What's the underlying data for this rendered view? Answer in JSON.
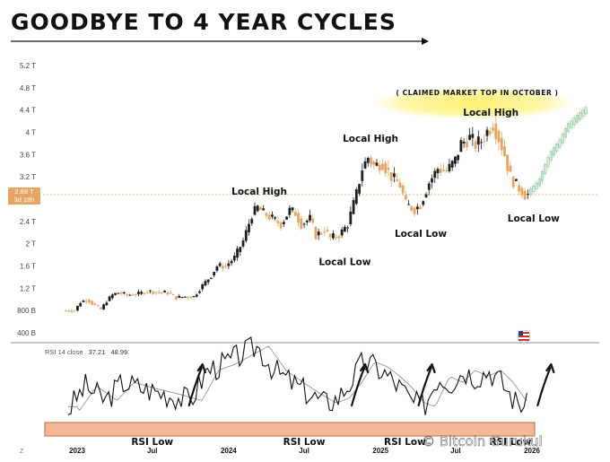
{
  "title": "GOODBYE TO 4 YEAR CYCLES",
  "watermark": "© Bitcoin Gurukul",
  "claim_label": "( CLAIMED MARKET TOP IN OCTOBER )",
  "price_tag": {
    "value": "2.88 T",
    "timer": "3d 18h"
  },
  "rsi_label": {
    "name": "RSI 14 close",
    "v1": "37.21",
    "v2": "48.99"
  },
  "colors": {
    "up": "#1f1f1f",
    "down": "#e8a561",
    "rsi_band": "#f4b896",
    "highlight": "#fff06a",
    "projection": "#8fc79a"
  },
  "chart_data": {
    "type": "candlestick",
    "title": "GOODBYE TO 4 YEAR CYCLES",
    "y_unit": "T",
    "y_ticks": [
      "5.2 T",
      "4.8 T",
      "4.4 T",
      "4 T",
      "3.6 T",
      "3.2 T",
      "2.4 T",
      "2 T",
      "1.6 T",
      "1.2 T",
      "800 B",
      "400 B"
    ],
    "y_tick_values": [
      5.2,
      4.8,
      4.4,
      4.0,
      3.6,
      3.2,
      2.4,
      2.0,
      1.6,
      1.2,
      0.8,
      0.4
    ],
    "x_ticks": [
      "2023",
      "Jul",
      "2024",
      "Jul",
      "2025",
      "Jul",
      "2026"
    ],
    "x_tick_dates": [
      "2023-01-01",
      "2023-07-01",
      "2024-01-01",
      "2024-07-01",
      "2025-01-01",
      "2025-07-01",
      "2026-01-01"
    ],
    "current_price": 2.88,
    "price_path": [
      [
        "2022-12-05",
        0.8
      ],
      [
        "2022-12-19",
        0.8
      ],
      [
        "2023-01-02",
        0.8
      ],
      [
        "2023-01-16",
        0.95
      ],
      [
        "2023-02-01",
        1.0
      ],
      [
        "2023-02-13",
        0.93
      ],
      [
        "2023-03-06",
        0.82
      ],
      [
        "2023-03-20",
        0.97
      ],
      [
        "2023-04-03",
        1.08
      ],
      [
        "2023-04-17",
        1.12
      ],
      [
        "2023-05-08",
        1.08
      ],
      [
        "2023-06-05",
        1.1
      ],
      [
        "2023-06-26",
        1.15
      ],
      [
        "2023-07-17",
        1.13
      ],
      [
        "2023-08-14",
        1.12
      ],
      [
        "2023-09-04",
        1.03
      ],
      [
        "2023-09-25",
        1.05
      ],
      [
        "2023-10-16",
        1.05
      ],
      [
        "2023-11-06",
        1.25
      ],
      [
        "2023-11-27",
        1.43
      ],
      [
        "2023-12-11",
        1.6
      ],
      [
        "2024-01-01",
        1.6
      ],
      [
        "2024-01-22",
        1.75
      ],
      [
        "2024-02-12",
        2.05
      ],
      [
        "2024-03-04",
        2.52
      ],
      [
        "2024-03-18",
        2.65
      ],
      [
        "2024-04-01",
        2.55
      ],
      [
        "2024-04-22",
        2.45
      ],
      [
        "2024-05-13",
        2.35
      ],
      [
        "2024-06-03",
        2.6
      ],
      [
        "2024-06-17",
        2.55
      ],
      [
        "2024-07-01",
        2.35
      ],
      [
        "2024-07-22",
        2.45
      ],
      [
        "2024-08-05",
        2.15
      ],
      [
        "2024-08-26",
        2.25
      ],
      [
        "2024-09-09",
        2.1
      ],
      [
        "2024-09-30",
        2.15
      ],
      [
        "2024-10-21",
        2.35
      ],
      [
        "2024-11-11",
        2.9
      ],
      [
        "2024-11-25",
        3.35
      ],
      [
        "2024-12-09",
        3.55
      ],
      [
        "2024-12-23",
        3.4
      ],
      [
        "2025-01-13",
        3.45
      ],
      [
        "2025-02-03",
        3.2
      ],
      [
        "2025-02-24",
        3.05
      ],
      [
        "2025-03-10",
        2.7
      ],
      [
        "2025-03-31",
        2.62
      ],
      [
        "2025-04-14",
        2.7
      ],
      [
        "2025-05-05",
        3.1
      ],
      [
        "2025-05-26",
        3.35
      ],
      [
        "2025-06-16",
        3.3
      ],
      [
        "2025-07-07",
        3.5
      ],
      [
        "2025-07-21",
        3.8
      ],
      [
        "2025-08-11",
        3.9
      ],
      [
        "2025-08-25",
        3.78
      ],
      [
        "2025-09-08",
        3.85
      ],
      [
        "2025-09-22",
        4.02
      ],
      [
        "2025-10-06",
        4.15
      ],
      [
        "2025-10-20",
        3.9
      ],
      [
        "2025-11-03",
        3.6
      ],
      [
        "2025-11-17",
        3.2
      ],
      [
        "2025-12-01",
        3.05
      ],
      [
        "2025-12-15",
        2.95
      ],
      [
        "2025-12-22",
        2.88
      ]
    ],
    "projection_path": [
      [
        "2025-12-22",
        2.88
      ],
      [
        "2026-01-19",
        3.1
      ],
      [
        "2026-02-16",
        3.6
      ],
      [
        "2026-03-09",
        3.8
      ],
      [
        "2026-03-30",
        4.1
      ],
      [
        "2026-04-20",
        4.25
      ],
      [
        "2026-05-11",
        4.4
      ]
    ],
    "annotations": [
      {
        "text": "Local High",
        "date": "2024-03-15",
        "price": 2.88
      },
      {
        "text": "Local Low",
        "date": "2024-10-07",
        "price": 1.62
      },
      {
        "text": "Local High",
        "date": "2024-12-08",
        "price": 3.83
      },
      {
        "text": "Local Low",
        "date": "2025-04-08",
        "price": 2.12
      },
      {
        "text": "Local High",
        "date": "2025-09-24",
        "price": 4.3
      },
      {
        "text": "Local Low",
        "date": "2026-01-05",
        "price": 2.4
      }
    ],
    "rsi_path": [
      [
        "2022-12-10",
        22
      ],
      [
        "2023-01-20",
        42
      ],
      [
        "2023-03-10",
        30
      ],
      [
        "2023-04-20",
        45
      ],
      [
        "2023-06-10",
        40
      ],
      [
        "2023-08-10",
        35
      ],
      [
        "2023-10-01",
        30
      ],
      [
        "2023-11-10",
        55
      ],
      [
        "2023-12-20",
        60
      ],
      [
        "2024-02-01",
        68
      ],
      [
        "2024-03-10",
        75
      ],
      [
        "2024-04-20",
        55
      ],
      [
        "2024-06-01",
        45
      ],
      [
        "2024-07-15",
        35
      ],
      [
        "2024-08-20",
        28
      ],
      [
        "2024-09-20",
        32
      ],
      [
        "2024-10-20",
        45
      ],
      [
        "2024-11-20",
        62
      ],
      [
        "2024-12-20",
        58
      ],
      [
        "2025-01-20",
        50
      ],
      [
        "2025-02-20",
        40
      ],
      [
        "2025-03-20",
        28
      ],
      [
        "2025-04-15",
        25
      ],
      [
        "2025-05-20",
        50
      ],
      [
        "2025-06-20",
        45
      ],
      [
        "2025-07-20",
        55
      ],
      [
        "2025-08-20",
        50
      ],
      [
        "2025-09-20",
        55
      ],
      [
        "2025-10-20",
        45
      ],
      [
        "2025-11-20",
        30
      ],
      [
        "2025-12-22",
        25
      ]
    ],
    "rsi_annotations": [
      {
        "text": "RSI Low",
        "date": "2023-07-01"
      },
      {
        "text": "RSI Low",
        "date": "2024-07-01"
      },
      {
        "text": "RSI Low",
        "date": "2025-03-01"
      },
      {
        "text": "RSI Low",
        "date": "2025-11-10"
      }
    ],
    "rsi_up_arrows": [
      "2023-10-15",
      "2024-11-10",
      "2025-04-20",
      "2026-02-01"
    ]
  }
}
